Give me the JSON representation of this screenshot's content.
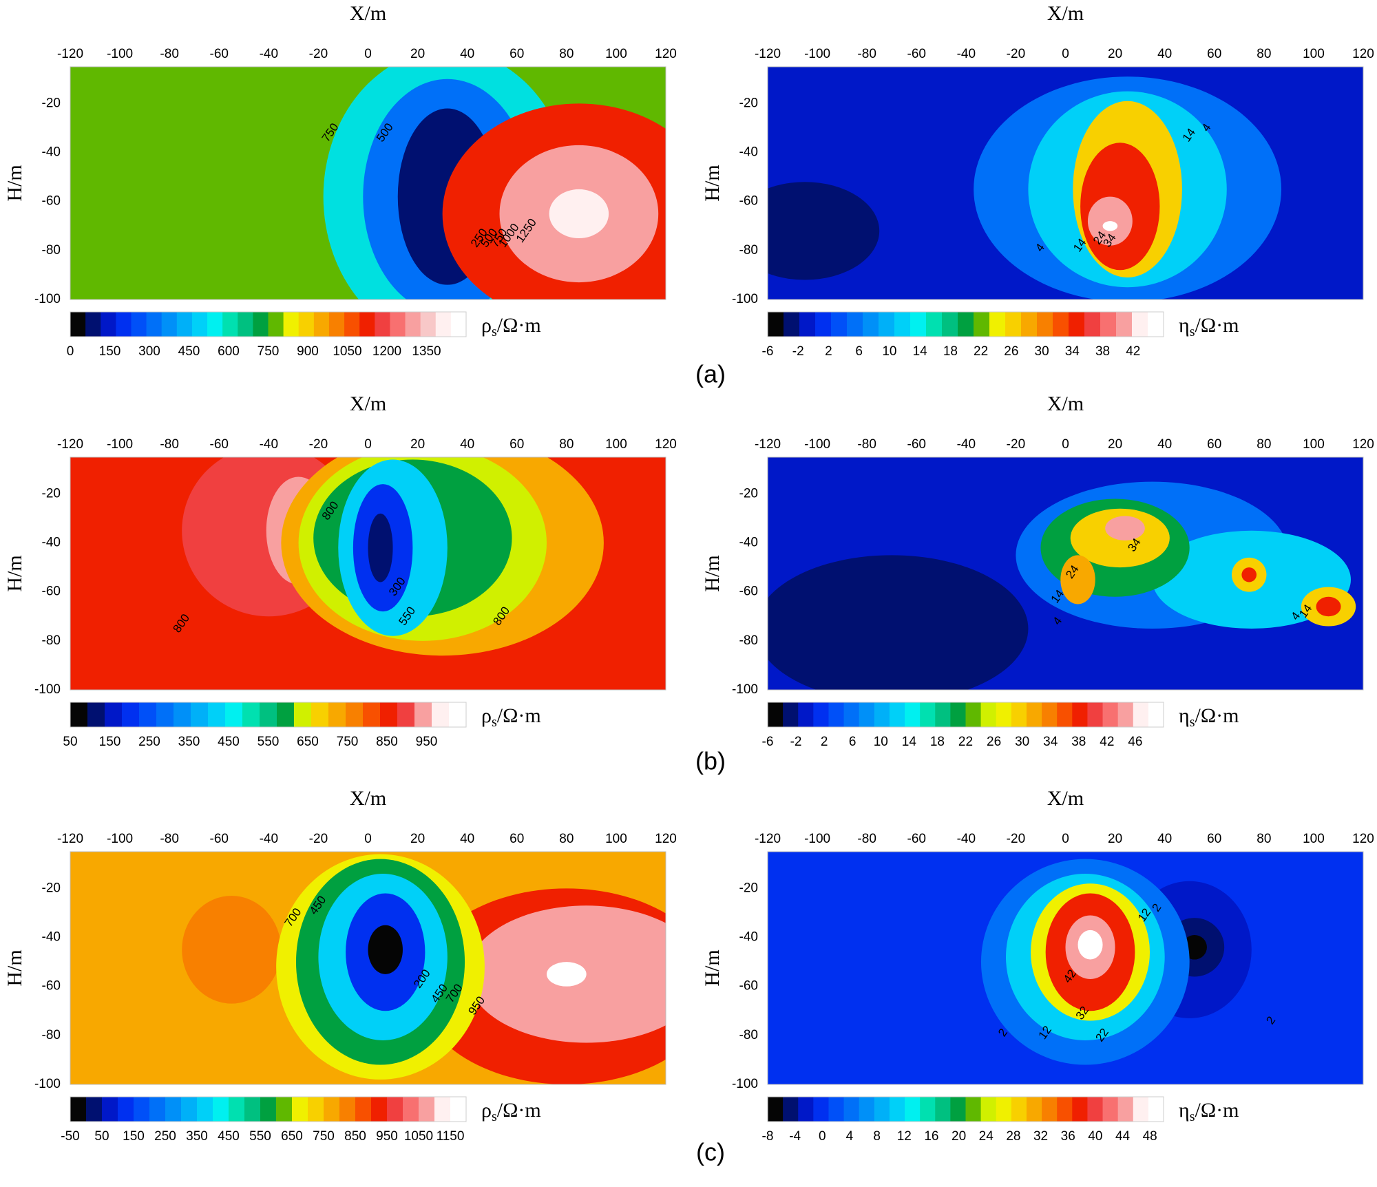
{
  "captions": [
    "(a)",
    "(b)",
    "(c)"
  ],
  "chart_data": [
    {
      "type": "heatmap",
      "row": 0,
      "col": 0,
      "xlabel": "X/m",
      "ylabel": "H/m",
      "xlim": [
        -120,
        120
      ],
      "ylim": [
        -100,
        -5
      ],
      "xticks": [
        "-120",
        "-100",
        "-80",
        "-60",
        "-40",
        "-20",
        "0",
        "20",
        "40",
        "60",
        "80",
        "100",
        "120"
      ],
      "yticks": [
        "-20",
        "-40",
        "-60",
        "-80",
        "-100"
      ],
      "colorbar": {
        "unit_main": "ρ",
        "unit_sub": "s",
        "unit_rest": "/Ω·m",
        "range": [
          0,
          1500
        ],
        "labels": [
          "0",
          "150",
          "300",
          "450",
          "600",
          "750",
          "900",
          "1050",
          "1200",
          "1350"
        ],
        "colors": [
          "#050505",
          "#001070",
          "#0018c8",
          "#0030f0",
          "#0050f8",
          "#0070f8",
          "#0090f8",
          "#00b0f8",
          "#00d0f8",
          "#00f0f0",
          "#00e0b0",
          "#00c080",
          "#00a040",
          "#60b800",
          "#f0f000",
          "#f8d000",
          "#f8a800",
          "#f88000",
          "#f85000",
          "#f02000",
          "#f04040",
          "#f87070",
          "#f8a0a0",
          "#f8c8c8",
          "#fff0f0",
          "#ffffff"
        ]
      },
      "background_color": "#60b800",
      "features": [
        {
          "x": 32,
          "y": -58,
          "rx": 50,
          "ry": 60,
          "color": "#00e0e0"
        },
        {
          "x": 32,
          "y": -58,
          "rx": 34,
          "ry": 48,
          "color": "#0070f8"
        },
        {
          "x": 32,
          "y": -58,
          "rx": 20,
          "ry": 36,
          "color": "#001070"
        },
        {
          "x": 85,
          "y": -65,
          "rx": 55,
          "ry": 45,
          "color": "#f02000"
        },
        {
          "x": 85,
          "y": -65,
          "rx": 32,
          "ry": 28,
          "color": "#f8a0a0"
        },
        {
          "x": 85,
          "y": -65,
          "rx": 12,
          "ry": 10,
          "color": "#fff0f0"
        }
      ],
      "contour_labels": [
        {
          "text": "750",
          "x": -15,
          "y": -32
        },
        {
          "text": "500",
          "x": 7,
          "y": -32
        },
        {
          "text": "250",
          "x": 45,
          "y": -75
        },
        {
          "text": "500",
          "x": 49,
          "y": -75
        },
        {
          "text": "750",
          "x": 53,
          "y": -75
        },
        {
          "text": "1000",
          "x": 57,
          "y": -74
        },
        {
          "text": "1250",
          "x": 64,
          "y": -72
        }
      ]
    },
    {
      "type": "heatmap",
      "row": 0,
      "col": 1,
      "xlabel": "X/m",
      "ylabel": "H/m",
      "xlim": [
        -120,
        120
      ],
      "ylim": [
        -100,
        -5
      ],
      "xticks": [
        "-120",
        "-100",
        "-80",
        "-60",
        "-40",
        "-20",
        "0",
        "20",
        "40",
        "60",
        "80",
        "100",
        "120"
      ],
      "yticks": [
        "-20",
        "-40",
        "-60",
        "-80",
        "-100"
      ],
      "colorbar": {
        "unit_main": "η",
        "unit_sub": "s",
        "unit_rest": "/Ω·m",
        "range": [
          -6,
          46
        ],
        "labels": [
          "-6",
          "-2",
          "2",
          "6",
          "10",
          "14",
          "18",
          "22",
          "26",
          "30",
          "34",
          "38",
          "42"
        ],
        "colors": [
          "#050505",
          "#001070",
          "#0018c8",
          "#0030f0",
          "#0050f8",
          "#0070f8",
          "#0090f8",
          "#00b0f8",
          "#00d0f8",
          "#00f0f0",
          "#00e0b0",
          "#00c080",
          "#00a040",
          "#60b800",
          "#f0f000",
          "#f8d000",
          "#f8a800",
          "#f88000",
          "#f85000",
          "#f02000",
          "#f04040",
          "#f87070",
          "#f8a0a0",
          "#fff0f0",
          "#ffffff"
        ]
      },
      "background_color": "#0018c8",
      "features": [
        {
          "x": -105,
          "y": -72,
          "rx": 30,
          "ry": 20,
          "color": "#001070"
        },
        {
          "x": 25,
          "y": -55,
          "rx": 62,
          "ry": 46,
          "color": "#0070f8"
        },
        {
          "x": 25,
          "y": -55,
          "rx": 40,
          "ry": 40,
          "color": "#00d0f8"
        },
        {
          "x": 25,
          "y": -55,
          "rx": 22,
          "ry": 36,
          "color": "#f8d000"
        },
        {
          "x": 22,
          "y": -62,
          "rx": 16,
          "ry": 26,
          "color": "#f02000"
        },
        {
          "x": 18,
          "y": -68,
          "rx": 9,
          "ry": 10,
          "color": "#f8a0a0"
        },
        {
          "x": 18,
          "y": -70,
          "rx": 3,
          "ry": 2,
          "color": "#ffffff"
        }
      ],
      "contour_labels": [
        {
          "text": "4",
          "x": 57,
          "y": -30
        },
        {
          "text": "14",
          "x": 50,
          "y": -33
        },
        {
          "text": "4",
          "x": -10,
          "y": -79
        },
        {
          "text": "14",
          "x": 6,
          "y": -78
        },
        {
          "text": "24",
          "x": 14,
          "y": -75
        },
        {
          "text": "34",
          "x": 18,
          "y": -76
        }
      ]
    },
    {
      "type": "heatmap",
      "row": 1,
      "col": 0,
      "xlabel": "X/m",
      "ylabel": "H/m",
      "xlim": [
        -120,
        120
      ],
      "ylim": [
        -100,
        -5
      ],
      "xticks": [
        "-120",
        "-100",
        "-80",
        "-60",
        "-40",
        "-20",
        "0",
        "20",
        "40",
        "60",
        "80",
        "100",
        "120"
      ],
      "yticks": [
        "-20",
        "-40",
        "-60",
        "-80",
        "-100"
      ],
      "colorbar": {
        "unit_main": "ρ",
        "unit_sub": "s",
        "unit_rest": "/Ω·m",
        "range": [
          50,
          1050
        ],
        "labels": [
          "50",
          "150",
          "250",
          "350",
          "450",
          "550",
          "650",
          "750",
          "850",
          "950"
        ],
        "colors": [
          "#050505",
          "#001070",
          "#0018c8",
          "#0030f0",
          "#0050f8",
          "#0070f8",
          "#0090f8",
          "#00b0f8",
          "#00d0f8",
          "#00f0f0",
          "#00e0b0",
          "#00c080",
          "#00a040",
          "#d0f000",
          "#f8d000",
          "#f8a800",
          "#f88000",
          "#f85000",
          "#f02000",
          "#f04040",
          "#f8a0a0",
          "#fff0f0",
          "#ffffff"
        ]
      },
      "background_color": "#f02000",
      "features": [
        {
          "x": -40,
          "y": -35,
          "rx": 35,
          "ry": 35,
          "color": "#f04040"
        },
        {
          "x": -28,
          "y": -35,
          "rx": 13,
          "ry": 22,
          "color": "#f8a0a0"
        },
        {
          "x": -28,
          "y": -35,
          "rx": 3,
          "ry": 6,
          "color": "#fff0f0"
        },
        {
          "x": 30,
          "y": -40,
          "rx": 65,
          "ry": 46,
          "color": "#f8a800"
        },
        {
          "x": 22,
          "y": -40,
          "rx": 50,
          "ry": 40,
          "color": "#d0f000"
        },
        {
          "x": 18,
          "y": -38,
          "rx": 40,
          "ry": 32,
          "color": "#00a040"
        },
        {
          "x": 10,
          "y": -42,
          "rx": 22,
          "ry": 36,
          "color": "#00d0f8"
        },
        {
          "x": 6,
          "y": -42,
          "rx": 12,
          "ry": 26,
          "color": "#0030f0"
        },
        {
          "x": 5,
          "y": -42,
          "rx": 5,
          "ry": 14,
          "color": "#001070"
        }
      ],
      "contour_labels": [
        {
          "text": "800",
          "x": -15,
          "y": -27
        },
        {
          "text": "300",
          "x": 12,
          "y": -58
        },
        {
          "text": "550",
          "x": 16,
          "y": -70
        },
        {
          "text": "800",
          "x": 54,
          "y": -70
        },
        {
          "text": "800",
          "x": -75,
          "y": -73
        }
      ]
    },
    {
      "type": "heatmap",
      "row": 1,
      "col": 1,
      "xlabel": "X/m",
      "ylabel": "H/m",
      "xlim": [
        -120,
        120
      ],
      "ylim": [
        -100,
        -5
      ],
      "xticks": [
        "-120",
        "-100",
        "-80",
        "-60",
        "-40",
        "-20",
        "0",
        "20",
        "40",
        "60",
        "80",
        "100",
        "120"
      ],
      "yticks": [
        "-20",
        "-40",
        "-60",
        "-80",
        "-100"
      ],
      "colorbar": {
        "unit_main": "η",
        "unit_sub": "s",
        "unit_rest": "/Ω·m",
        "range": [
          -6,
          50
        ],
        "labels": [
          "-6",
          "-2",
          "2",
          "6",
          "10",
          "14",
          "18",
          "22",
          "26",
          "30",
          "34",
          "38",
          "42",
          "46"
        ],
        "colors": [
          "#050505",
          "#001070",
          "#0018c8",
          "#0030f0",
          "#0050f8",
          "#0070f8",
          "#0090f8",
          "#00b0f8",
          "#00d0f8",
          "#00f0f0",
          "#00e0b0",
          "#00c080",
          "#00a040",
          "#60b800",
          "#d0f000",
          "#f0f000",
          "#f8d000",
          "#f8a800",
          "#f88000",
          "#f85000",
          "#f02000",
          "#f04040",
          "#f87070",
          "#f8a0a0",
          "#fff0f0",
          "#ffffff"
        ]
      },
      "background_color": "#0018c8",
      "features": [
        {
          "x": -70,
          "y": -75,
          "rx": 55,
          "ry": 30,
          "color": "#001070"
        },
        {
          "x": 35,
          "y": -45,
          "rx": 55,
          "ry": 30,
          "color": "#0070f8"
        },
        {
          "x": 75,
          "y": -55,
          "rx": 40,
          "ry": 20,
          "color": "#00d0f8"
        },
        {
          "x": 20,
          "y": -42,
          "rx": 30,
          "ry": 20,
          "color": "#00a040"
        },
        {
          "x": 22,
          "y": -38,
          "rx": 20,
          "ry": 12,
          "color": "#f8d000"
        },
        {
          "x": 24,
          "y": -34,
          "rx": 8,
          "ry": 5,
          "color": "#f8a0a0"
        },
        {
          "x": 5,
          "y": -55,
          "rx": 7,
          "ry": 10,
          "color": "#f8a800"
        },
        {
          "x": 74,
          "y": -53,
          "rx": 7,
          "ry": 7,
          "color": "#f8d000"
        },
        {
          "x": 74,
          "y": -53,
          "rx": 3,
          "ry": 3,
          "color": "#f02000"
        },
        {
          "x": 106,
          "y": -66,
          "rx": 11,
          "ry": 8,
          "color": "#f8d000"
        },
        {
          "x": 106,
          "y": -66,
          "rx": 5,
          "ry": 4,
          "color": "#f02000"
        }
      ],
      "contour_labels": [
        {
          "text": "34",
          "x": 28,
          "y": -41
        },
        {
          "text": "24",
          "x": 3,
          "y": -52
        },
        {
          "text": "14",
          "x": -3,
          "y": -62
        },
        {
          "text": "4",
          "x": -3,
          "y": -72
        },
        {
          "text": "4",
          "x": 93,
          "y": -70
        },
        {
          "text": "14",
          "x": 97,
          "y": -68
        }
      ]
    },
    {
      "type": "heatmap",
      "row": 2,
      "col": 0,
      "xlabel": "X/m",
      "ylabel": "H/m",
      "xlim": [
        -120,
        120
      ],
      "ylim": [
        -100,
        -5
      ],
      "xticks": [
        "-120",
        "-100",
        "-80",
        "-60",
        "-40",
        "-20",
        "0",
        "20",
        "40",
        "60",
        "80",
        "100",
        "120"
      ],
      "yticks": [
        "-20",
        "-40",
        "-60",
        "-80",
        "-100"
      ],
      "colorbar": {
        "unit_main": "ρ",
        "unit_sub": "s",
        "unit_rest": "/Ω·m",
        "range": [
          -50,
          1200
        ],
        "labels": [
          "-50",
          "50",
          "150",
          "250",
          "350",
          "450",
          "550",
          "650",
          "750",
          "850",
          "950",
          "1050",
          "1150"
        ],
        "colors": [
          "#050505",
          "#001070",
          "#0018c8",
          "#0030f0",
          "#0050f8",
          "#0070f8",
          "#0090f8",
          "#00b0f8",
          "#00d0f8",
          "#00f0f0",
          "#00e0b0",
          "#00c080",
          "#00a040",
          "#60b800",
          "#f0f000",
          "#f8d000",
          "#f8a800",
          "#f88000",
          "#f85000",
          "#f02000",
          "#f04040",
          "#f87070",
          "#f8a0a0",
          "#fff0f0",
          "#ffffff"
        ]
      },
      "background_color": "#f8a800",
      "features": [
        {
          "x": -55,
          "y": -45,
          "rx": 20,
          "ry": 22,
          "color": "#f88000"
        },
        {
          "x": 80,
          "y": -60,
          "rx": 60,
          "ry": 40,
          "color": "#f02000"
        },
        {
          "x": 88,
          "y": -55,
          "rx": 48,
          "ry": 28,
          "color": "#f8a0a0"
        },
        {
          "x": 80,
          "y": -55,
          "rx": 8,
          "ry": 5,
          "color": "#ffffff"
        },
        {
          "x": 5,
          "y": -52,
          "rx": 42,
          "ry": 46,
          "color": "#f0f000"
        },
        {
          "x": 5,
          "y": -50,
          "rx": 34,
          "ry": 42,
          "color": "#00a040"
        },
        {
          "x": 6,
          "y": -48,
          "rx": 26,
          "ry": 34,
          "color": "#00d0f8"
        },
        {
          "x": 7,
          "y": -46,
          "rx": 16,
          "ry": 24,
          "color": "#0030f0"
        },
        {
          "x": 7,
          "y": -45,
          "rx": 7,
          "ry": 10,
          "color": "#050505"
        }
      ],
      "contour_labels": [
        {
          "text": "700",
          "x": -30,
          "y": -32
        },
        {
          "text": "450",
          "x": -20,
          "y": -27
        },
        {
          "text": "200",
          "x": 22,
          "y": -57
        },
        {
          "text": "450",
          "x": 29,
          "y": -63
        },
        {
          "text": "700",
          "x": 35,
          "y": -63
        },
        {
          "text": "950",
          "x": 44,
          "y": -68
        }
      ]
    },
    {
      "type": "heatmap",
      "row": 2,
      "col": 1,
      "xlabel": "X/m",
      "ylabel": "H/m",
      "xlim": [
        -120,
        120
      ],
      "ylim": [
        -100,
        -5
      ],
      "xticks": [
        "-120",
        "-100",
        "-80",
        "-60",
        "-40",
        "-20",
        "0",
        "20",
        "40",
        "60",
        "80",
        "100",
        "120"
      ],
      "yticks": [
        "-20",
        "-40",
        "-60",
        "-80",
        "-100"
      ],
      "colorbar": {
        "unit_main": "η",
        "unit_sub": "s",
        "unit_rest": "/Ω·m",
        "range": [
          -8,
          50
        ],
        "labels": [
          "-8",
          "-4",
          "0",
          "4",
          "8",
          "12",
          "16",
          "20",
          "24",
          "28",
          "32",
          "36",
          "40",
          "44",
          "48"
        ],
        "colors": [
          "#050505",
          "#001070",
          "#0018c8",
          "#0030f0",
          "#0050f8",
          "#0070f8",
          "#0090f8",
          "#00b0f8",
          "#00d0f8",
          "#00f0f0",
          "#00e0b0",
          "#00c080",
          "#00a040",
          "#60b800",
          "#d0f000",
          "#f0f000",
          "#f8d000",
          "#f8a800",
          "#f88000",
          "#f85000",
          "#f02000",
          "#f04040",
          "#f87070",
          "#f8a0a0",
          "#fff0f0",
          "#ffffff"
        ]
      },
      "background_color": "#0030f0",
      "features": [
        {
          "x": 50,
          "y": -45,
          "rx": 25,
          "ry": 28,
          "color": "#0018c8"
        },
        {
          "x": 52,
          "y": -44,
          "rx": 12,
          "ry": 12,
          "color": "#001070"
        },
        {
          "x": 52,
          "y": -44,
          "rx": 5,
          "ry": 5,
          "color": "#050505"
        },
        {
          "x": 8,
          "y": -50,
          "rx": 42,
          "ry": 42,
          "color": "#0070f8"
        },
        {
          "x": 8,
          "y": -48,
          "rx": 32,
          "ry": 34,
          "color": "#00d0f8"
        },
        {
          "x": 10,
          "y": -46,
          "rx": 24,
          "ry": 28,
          "color": "#f0f000"
        },
        {
          "x": 10,
          "y": -46,
          "rx": 18,
          "ry": 24,
          "color": "#f02000"
        },
        {
          "x": 10,
          "y": -44,
          "rx": 10,
          "ry": 13,
          "color": "#f8a0a0"
        },
        {
          "x": 10,
          "y": -43,
          "rx": 5,
          "ry": 6,
          "color": "#ffffff"
        }
      ],
      "contour_labels": [
        {
          "text": "2",
          "x": 37,
          "y": -28
        },
        {
          "text": "12",
          "x": 32,
          "y": -31
        },
        {
          "text": "42",
          "x": 2,
          "y": -56
        },
        {
          "text": "32",
          "x": 7,
          "y": -71
        },
        {
          "text": "22",
          "x": 15,
          "y": -80
        },
        {
          "text": "12",
          "x": -8,
          "y": -79
        },
        {
          "text": "2",
          "x": -25,
          "y": -79
        },
        {
          "text": "2",
          "x": 83,
          "y": -74
        }
      ]
    }
  ]
}
